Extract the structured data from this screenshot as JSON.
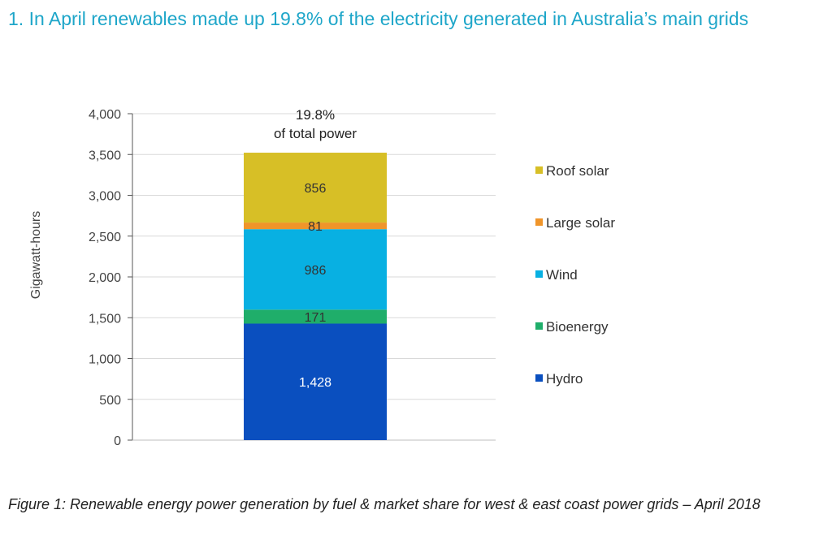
{
  "title": "1. In April renewables made up 19.8% of the electricity generated in Australia’s main grids",
  "caption": "Figure 1: Renewable energy power generation by fuel & market share for west & east coast power grids – April 2018",
  "chart_data": {
    "type": "bar",
    "stacked": true,
    "ylabel": "Gigawatt-hours",
    "ylim": [
      0,
      4000
    ],
    "ytick_step": 500,
    "y_ticks": [
      "0",
      "500",
      "1,000",
      "1,500",
      "2,000",
      "2,500",
      "3,000",
      "3,500",
      "4,000"
    ],
    "grid": true,
    "legend_position": "right",
    "annotation": {
      "line1": "19.8%",
      "line2": "of total power"
    },
    "series": [
      {
        "name": "Hydro",
        "value": 1428,
        "label": "1,428",
        "color": "#0a4fbf",
        "label_color": "#ffffff"
      },
      {
        "name": "Bioenergy",
        "value": 171,
        "label": "171",
        "color": "#1fae6a",
        "label_color": "#333333"
      },
      {
        "name": "Wind",
        "value": 986,
        "label": "986",
        "color": "#08b0e2",
        "label_color": "#333333"
      },
      {
        "name": "Large solar",
        "value": 81,
        "label": "81",
        "color": "#f0952a",
        "label_color": "#333333"
      },
      {
        "name": "Roof solar",
        "value": 856,
        "label": "856",
        "color": "#d7bf26",
        "label_color": "#333333"
      }
    ],
    "legend_order": [
      "Roof solar",
      "Large solar",
      "Wind",
      "Bioenergy",
      "Hydro"
    ]
  }
}
